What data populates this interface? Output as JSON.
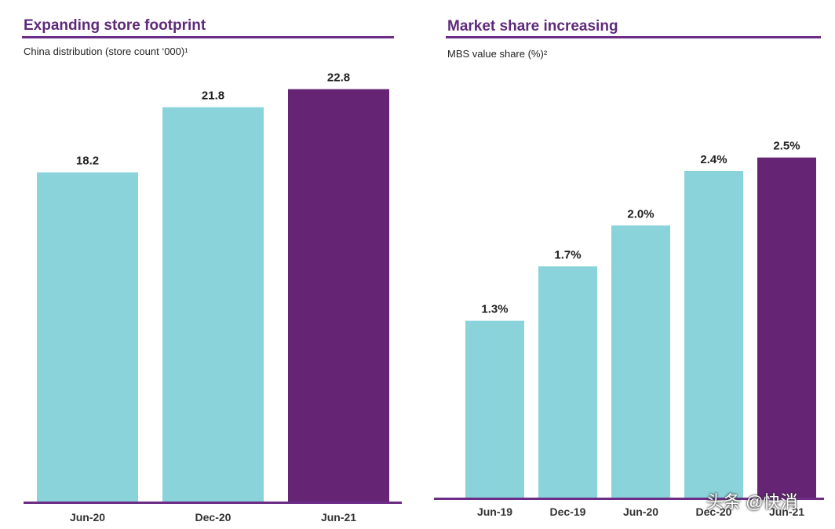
{
  "chart_data": [
    {
      "type": "bar",
      "title": "Expanding store footprint",
      "subtitle": "China distribution (store count ‘000)¹",
      "categories": [
        "Jun-20",
        "Dec-20",
        "Jun-21"
      ],
      "values": [
        18.2,
        21.8,
        22.8
      ],
      "value_labels": [
        "18.2",
        "21.8",
        "22.8"
      ],
      "highlight_index": 2,
      "ylim": [
        0,
        24.3
      ],
      "xlabel": "",
      "ylabel": "",
      "grid": false
    },
    {
      "type": "bar",
      "title": "Market share increasing",
      "subtitle": "MBS value share (%)²",
      "categories": [
        "Jun-19",
        "Dec-19",
        "Jun-20",
        "Dec-20",
        "Jun-21"
      ],
      "values": [
        1.3,
        1.7,
        2.0,
        2.4,
        2.5
      ],
      "value_labels": [
        "1.3%",
        "1.7%",
        "2.0%",
        "2.4%",
        "2.5%"
      ],
      "highlight_index": 4,
      "ylim": [
        0,
        3.0
      ],
      "xlabel": "",
      "ylabel": "",
      "grid": false
    }
  ],
  "colors": {
    "bar": "#8ad3da",
    "highlight": "#662475",
    "accent": "#6b2d86"
  },
  "watermark": "头条 @快消"
}
